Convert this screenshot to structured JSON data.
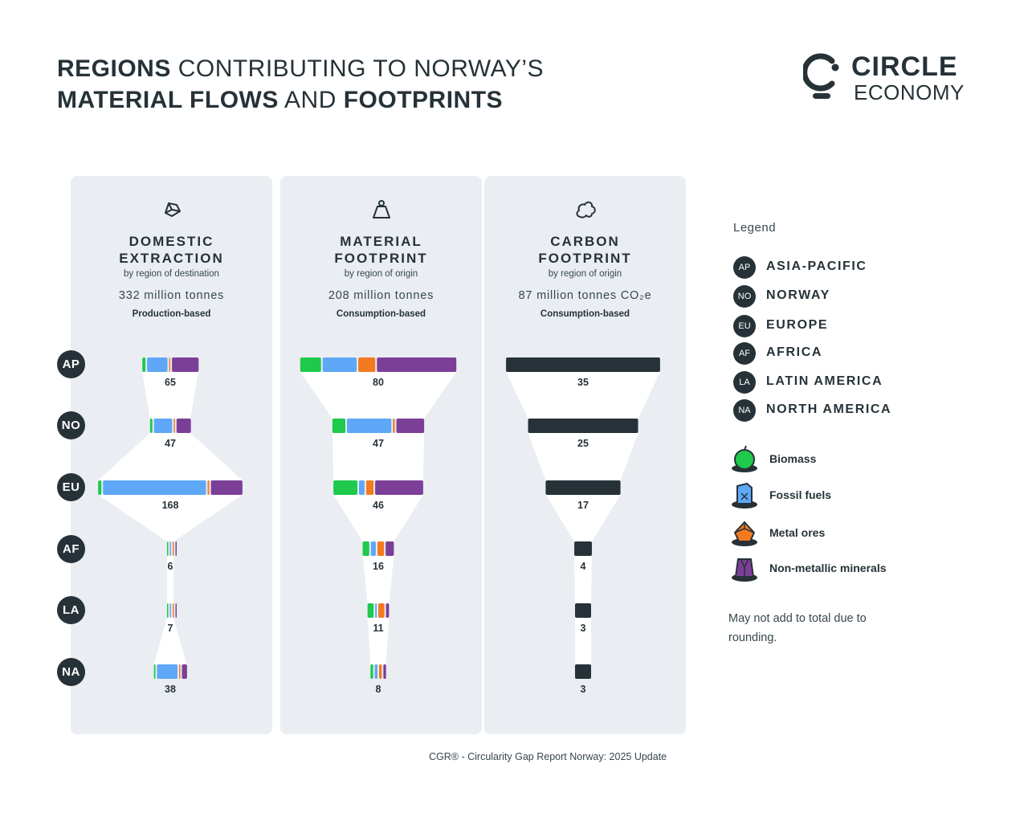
{
  "title": {
    "line1_bold": "REGIONS",
    "line1_rest": " CONTRIBUTING TO NORWAY’S",
    "line2_bold1": "MATERIAL FLOWS",
    "line2_mid": " AND ",
    "line2_bold2": "FOOTPRINTS"
  },
  "logo": {
    "line1": "CIRCLE",
    "line2": "ECONOMY"
  },
  "regions": [
    "AP",
    "NO",
    "EU",
    "AF",
    "LA",
    "NA"
  ],
  "panels": [
    {
      "title1": "DOMESTIC",
      "title2": "EXTRACTION",
      "subtitle": "by region of destination",
      "total": "332 million tonnes",
      "basis": "Production-based",
      "icon": "rock-icon"
    },
    {
      "title1": "MATERIAL",
      "title2": "FOOTPRINT",
      "subtitle": "by region of origin",
      "total": "208 million tonnes",
      "basis": "Consumption-based",
      "icon": "weight-icon"
    },
    {
      "title1": "CARBON",
      "title2": "FOOTPRINT",
      "subtitle": "by region of origin",
      "total": "87 million tonnes CO₂e",
      "basis": "Consumption-based",
      "icon": "cloud-icon"
    }
  ],
  "chart_data": [
    {
      "type": "bar",
      "title": "DOMESTIC EXTRACTION",
      "categories": [
        "AP",
        "NO",
        "EU",
        "AF",
        "LA",
        "NA"
      ],
      "values": [
        65,
        47,
        168,
        6,
        7,
        38
      ],
      "breakdown": {
        "Biomass": [
          4,
          3,
          4,
          1,
          1,
          2
        ],
        "Fossil fuels": [
          26,
          24,
          124,
          2,
          2,
          28
        ],
        "Metal ores": [
          1,
          1,
          2,
          1,
          1,
          1
        ],
        "Non-metallic minerals": [
          34,
          19,
          38,
          2,
          3,
          7
        ]
      }
    },
    {
      "type": "bar",
      "title": "MATERIAL FOOTPRINT",
      "categories": [
        "AP",
        "NO",
        "EU",
        "AF",
        "LA",
        "NA"
      ],
      "values": [
        80,
        47,
        46,
        16,
        11,
        8
      ],
      "breakdown": {
        "Biomass": [
          11,
          7,
          13,
          4,
          4,
          2
        ],
        "Fossil fuels": [
          18,
          24,
          3,
          3,
          1,
          2
        ],
        "Metal ores": [
          9,
          1,
          4,
          4,
          4,
          2
        ],
        "Non-metallic minerals": [
          42,
          15,
          26,
          5,
          2,
          2
        ]
      }
    },
    {
      "type": "bar",
      "title": "CARBON FOOTPRINT",
      "categories": [
        "AP",
        "NO",
        "EU",
        "AF",
        "LA",
        "NA"
      ],
      "values": [
        35,
        25,
        17,
        4,
        3,
        3
      ]
    }
  ],
  "legend": {
    "title": "Legend",
    "regions": [
      {
        "code": "AP",
        "name": "ASIA-PACIFIC"
      },
      {
        "code": "NO",
        "name": "NORWAY"
      },
      {
        "code": "EU",
        "name": "EUROPE"
      },
      {
        "code": "AF",
        "name": "AFRICA"
      },
      {
        "code": "LA",
        "name": "LATIN AMERICA"
      },
      {
        "code": "NA",
        "name": "NORTH AMERICA"
      }
    ],
    "materials": [
      {
        "name": "Biomass",
        "color": "#1ec94c",
        "icon": "apple-icon"
      },
      {
        "name": "Fossil fuels",
        "color": "#5ea8f7",
        "icon": "jerrycan-icon"
      },
      {
        "name": "Metal ores",
        "color": "#f47a1f",
        "icon": "ore-icon"
      },
      {
        "name": "Non-metallic minerals",
        "color": "#7b3f98",
        "icon": "mineral-icon"
      }
    ],
    "carbon_color": "#263238"
  },
  "note": "May not add to total due to rounding.",
  "source": "CGR® - Circularity Gap Report Norway: 2025 Update"
}
